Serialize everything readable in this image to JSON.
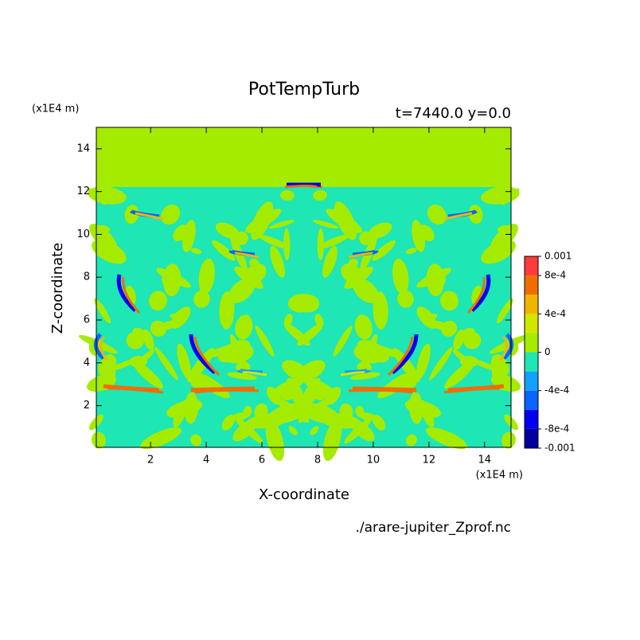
{
  "chart_data": {
    "type": "contour",
    "title": "PotTempTurb",
    "subtitle": "t=7440.0 y=0.0",
    "x_label": "X-coordinate",
    "y_label": "Z-coordinate",
    "x_unit": "(x1E4 m)",
    "y_unit": "(x1E4 m)",
    "source": "./arare-jupiter_Zprof.nc",
    "xlim": [
      0.05,
      14.95
    ],
    "ylim": [
      0.05,
      15.0
    ],
    "xticks": [
      2,
      4,
      6,
      8,
      10,
      12,
      14
    ],
    "yticks": [
      2,
      4,
      6,
      8,
      10,
      12,
      14
    ],
    "colorbar": {
      "levels": [
        -0.001,
        -0.0008,
        -0.0006,
        -0.0004,
        -0.0002,
        0,
        0.0002,
        0.0004,
        0.0006,
        0.0008,
        0.001
      ],
      "colors": [
        "#0000a0",
        "#0000f0",
        "#0a64ff",
        "#14a0ff",
        "#1ee6b4",
        "#a5eb00",
        "#d2e600",
        "#f0b400",
        "#f06e00",
        "#ff3c3c"
      ],
      "ticks": [
        {
          "value": 0.001,
          "label": "0.001"
        },
        {
          "value": 0.0008,
          "label": "8e-4"
        },
        {
          "value": 0.0004,
          "label": "4e-4"
        },
        0,
        {
          "value": -0.0004,
          "label": "-4e-4"
        },
        {
          "value": -0.0008,
          "label": "-8e-4"
        },
        -0.001
      ]
    }
  }
}
